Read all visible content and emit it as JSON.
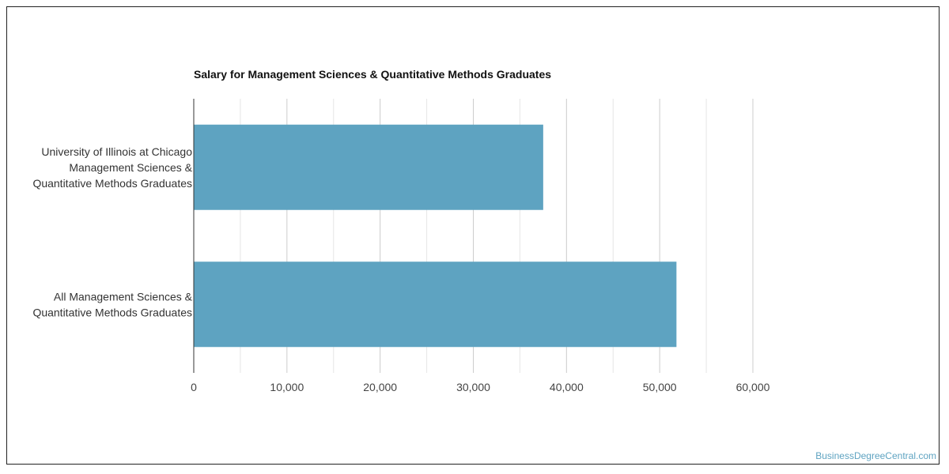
{
  "chart_data": {
    "type": "bar",
    "orientation": "horizontal",
    "title": "Salary for Management Sciences & Quantitative Methods Graduates",
    "categories": [
      [
        "University of Illinois at Chicago",
        "Management Sciences &",
        "Quantitative Methods Graduates"
      ],
      [
        "All Management Sciences &",
        "Quantitative Methods Graduates"
      ]
    ],
    "values": [
      37500,
      51800
    ],
    "xlim": [
      0,
      60000
    ],
    "xticks": [
      0,
      10000,
      20000,
      30000,
      40000,
      50000,
      60000
    ],
    "xtick_labels": [
      "0",
      "10,000",
      "20,000",
      "30,000",
      "40,000",
      "50,000",
      "60,000"
    ],
    "grid": true,
    "bar_color": "#5ea3c1"
  },
  "watermark": "BusinessDegreeCentral.com"
}
